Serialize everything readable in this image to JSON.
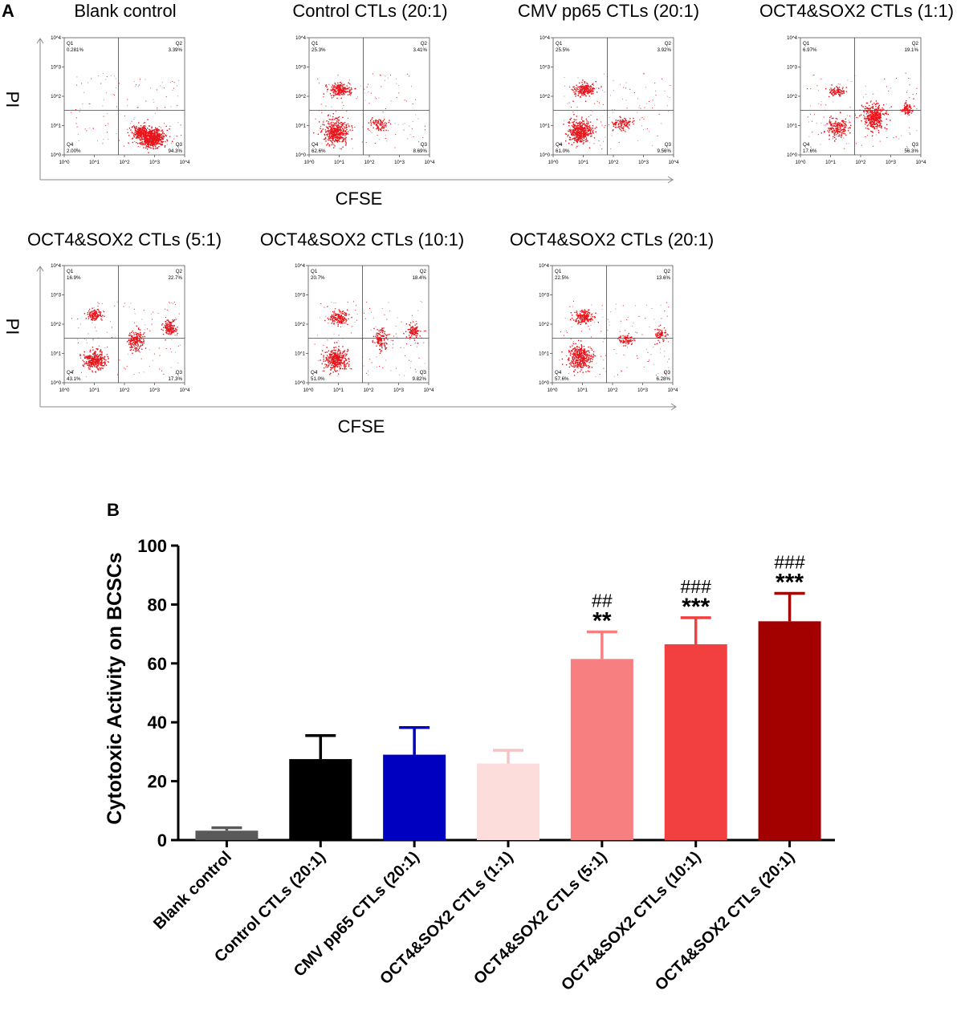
{
  "panelA": {
    "label": "A",
    "ylabel": "PI",
    "xlabel": "CFSE",
    "tick_labels": [
      "10^0",
      "10^1",
      "10^2",
      "10^3",
      "10^4"
    ],
    "quadrant_names": [
      "Q1",
      "Q2",
      "Q3",
      "Q4"
    ],
    "plots": [
      {
        "title": "Blank control",
        "q1": "0.281%",
        "q2": "3.39%",
        "q3": "94.3%",
        "q4": "2.00%"
      },
      {
        "title": "Control CTLs (20:1)",
        "q1": "25.3%",
        "q2": "3.41%",
        "q3": "8.69%",
        "q4": "62.6%"
      },
      {
        "title": "CMV pp65 CTLs (20:1)",
        "q1": "25.5%",
        "q2": "3.92%",
        "q3": "9.56%",
        "q4": "61.0%"
      },
      {
        "title": "OCT4&SOX2 CTLs (1:1)",
        "q1": "6.97%",
        "q2": "19.1%",
        "q3": "56.3%",
        "q4": "17.6%"
      },
      {
        "title": "OCT4&SOX2 CTLs (5:1)",
        "q1": "16.9%",
        "q2": "22.7%",
        "q3": "17.3%",
        "q4": "43.1%"
      },
      {
        "title": "OCT4&SOX2 CTLs (10:1)",
        "q1": "20.7%",
        "q2": "18.4%",
        "q3": "9.82%",
        "q4": "51.0%"
      },
      {
        "title": "OCT4&SOX2 CTLs (20:1)",
        "q1": "22.5%",
        "q2": "13.6%",
        "q3": "6.28%",
        "q4": "57.6%"
      }
    ]
  },
  "chart_data": {
    "type": "bar",
    "panel_label": "B",
    "title": "",
    "xlabel": "",
    "ylabel": "Cytotoxic Activity on BCSCs",
    "ylim": [
      0,
      100
    ],
    "yticks": [
      0,
      20,
      40,
      60,
      80,
      100
    ],
    "grid": false,
    "categories": [
      "Blank control",
      "Control CTLs (20:1)",
      "CMV pp65 CTLs (20:1)",
      "OCT4&SOX2 CTLs (1:1)",
      "OCT4&SOX2 CTLs (5:1)",
      "OCT4&SOX2 CTLs (10:1)",
      "OCT4&SOX2 CTLs (20:1)"
    ],
    "values": [
      3.2,
      27.5,
      29.0,
      26.0,
      61.5,
      66.5,
      74.3
    ],
    "errors": [
      1.0,
      8.0,
      9.2,
      4.5,
      9.2,
      9.0,
      9.5
    ],
    "colors": [
      "#595959",
      "#000000",
      "#0000c0",
      "#fddcdc",
      "#f77f7f",
      "#f24040",
      "#a30000"
    ],
    "annotations": [
      {
        "index": 4,
        "hash": "##",
        "stars": "**"
      },
      {
        "index": 5,
        "hash": "###",
        "stars": "***"
      },
      {
        "index": 6,
        "hash": "###",
        "stars": "***"
      }
    ]
  }
}
